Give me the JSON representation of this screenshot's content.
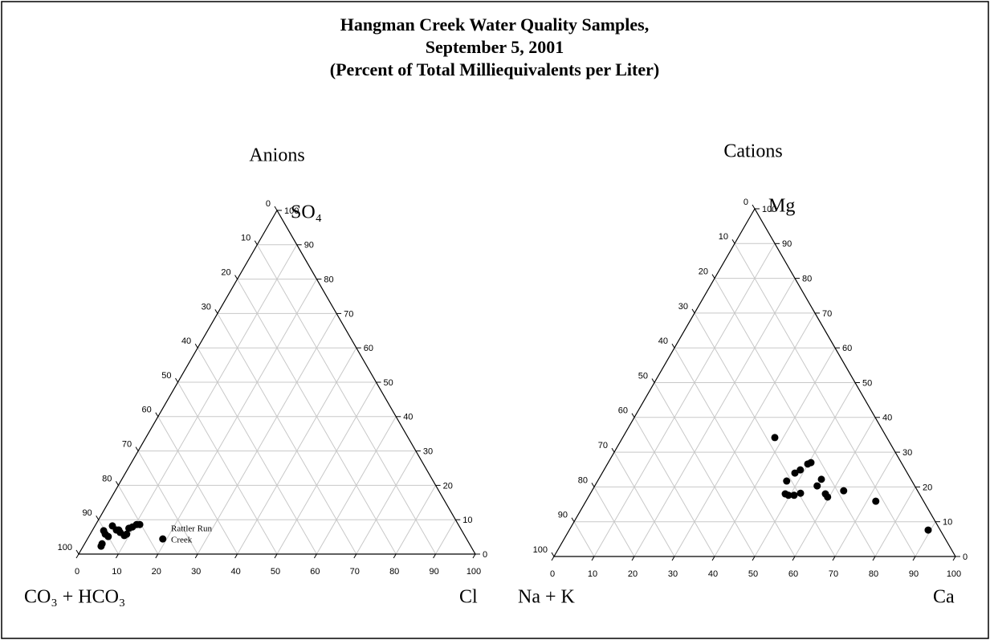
{
  "title": [
    "Hangman Creek Water Quality Samples,",
    "September 5, 2001",
    "(Percent of Total Milliequivalents per Liter)"
  ],
  "chart_data": [
    {
      "type": "ternary",
      "title": "Anions",
      "top_label": "SO₄",
      "left_label": "CO₃ + HCO₃",
      "right_label": "Cl",
      "ticks": [
        0,
        10,
        20,
        30,
        40,
        50,
        60,
        70,
        80,
        90,
        100
      ],
      "color": "#000000",
      "x": [
        4.5,
        4.4,
        2.9,
        3.8,
        4.9,
        4.4,
        6.0,
        7.3,
        8.8,
        9.2,
        8.9,
        9.6,
        10.3,
        11.1,
        6.6,
        19.0
      ],
      "values": [
        2.3,
        3.0,
        6.8,
        5.8,
        5.1,
        8.2,
        7.0,
        6.3,
        5.4,
        5.8,
        7.5,
        7.9,
        8.6,
        8.6,
        7.0,
        4.4
      ],
      "annotation": [
        "Rattler Run",
        "Creek"
      ]
    },
    {
      "type": "ternary",
      "title": "Cations",
      "top_label": "Mg",
      "left_label": "Na + K",
      "right_label": "Ca",
      "ticks": [
        0,
        10,
        20,
        30,
        40,
        50,
        60,
        70,
        80,
        90,
        100
      ],
      "color": "#000000",
      "x": [
        37.9,
        47.1,
        48.6,
        49.6,
        51.0,
        52.3,
        48.0,
        48.9,
        49.9,
        50.5,
        55.4,
        55.5,
        58.6,
        59.6,
        62.7,
        72.2,
        89.4
      ],
      "values": [
        34.2,
        21.7,
        18.0,
        17.6,
        17.6,
        18.2,
        24.0,
        24.9,
        26.6,
        27.0,
        20.3,
        22.2,
        18.0,
        17.1,
        18.9,
        15.9,
        7.6
      ]
    }
  ]
}
